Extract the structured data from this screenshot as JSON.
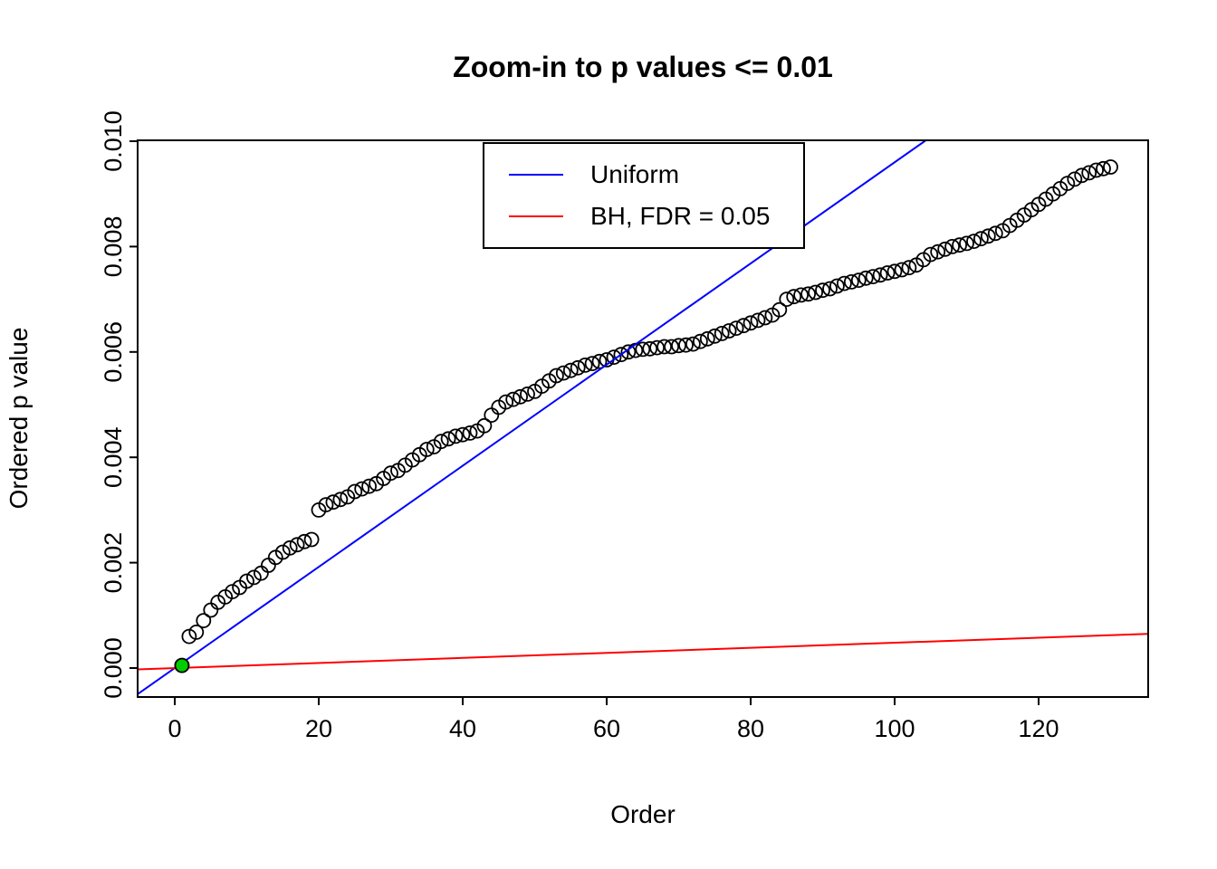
{
  "chart_data": {
    "type": "scatter",
    "title": "Zoom-in to p values <= 0.01",
    "xlabel": "Order",
    "ylabel": "Ordered p value",
    "xlim": [
      -5.2,
      135.2
    ],
    "ylim": [
      -0.00055,
      0.01002
    ],
    "x_ticks": [
      0,
      20,
      40,
      60,
      80,
      100,
      120
    ],
    "y_ticks": [
      0.0,
      0.002,
      0.004,
      0.006,
      0.008,
      0.01
    ],
    "y_tick_labels": [
      "0.000",
      "0.002",
      "0.004",
      "0.006",
      "0.008",
      "0.010"
    ],
    "grid": false,
    "legend": {
      "position": "top-center",
      "items": [
        {
          "label": "Uniform",
          "color": "#0000FF"
        },
        {
          "label": "BH, FDR = 0.05",
          "color": "#FF0000"
        }
      ]
    },
    "series": [
      {
        "name": "ordered-p-values",
        "marker": "open-circle",
        "color": "#000000",
        "x": [
          1,
          2,
          3,
          4,
          5,
          6,
          7,
          8,
          9,
          10,
          11,
          12,
          13,
          14,
          15,
          16,
          17,
          18,
          19,
          20,
          21,
          22,
          23,
          24,
          25,
          26,
          27,
          28,
          29,
          30,
          31,
          32,
          33,
          34,
          35,
          36,
          37,
          38,
          39,
          40,
          41,
          42,
          43,
          44,
          45,
          46,
          47,
          48,
          49,
          50,
          51,
          52,
          53,
          54,
          55,
          56,
          57,
          58,
          59,
          60,
          61,
          62,
          63,
          64,
          65,
          66,
          67,
          68,
          69,
          70,
          71,
          72,
          73,
          74,
          75,
          76,
          77,
          78,
          79,
          80,
          81,
          82,
          83,
          84,
          85,
          86,
          87,
          88,
          89,
          90,
          91,
          92,
          93,
          94,
          95,
          96,
          97,
          98,
          99,
          100,
          101,
          102,
          103,
          104,
          105,
          106,
          107,
          108,
          109,
          110,
          111,
          112,
          113,
          114,
          115,
          116,
          117,
          118,
          119,
          120,
          121,
          122,
          123,
          124,
          125,
          126,
          127,
          128,
          129,
          130
        ],
        "y": [
          5e-05,
          0.0006,
          0.00068,
          0.0009,
          0.0011,
          0.00125,
          0.00135,
          0.00145,
          0.00153,
          0.00165,
          0.00172,
          0.0018,
          0.00195,
          0.0021,
          0.0022,
          0.00228,
          0.00234,
          0.0024,
          0.00244,
          0.003,
          0.0031,
          0.00315,
          0.0032,
          0.00325,
          0.00335,
          0.0034,
          0.00345,
          0.0035,
          0.0036,
          0.0037,
          0.00375,
          0.00385,
          0.00395,
          0.00405,
          0.00415,
          0.0042,
          0.0043,
          0.00435,
          0.0044,
          0.00443,
          0.00446,
          0.0045,
          0.0046,
          0.0048,
          0.00495,
          0.00505,
          0.0051,
          0.00515,
          0.0052,
          0.00525,
          0.00535,
          0.00545,
          0.00555,
          0.0056,
          0.00565,
          0.0057,
          0.00575,
          0.00578,
          0.00582,
          0.00585,
          0.0059,
          0.00595,
          0.006,
          0.00603,
          0.00605,
          0.00606,
          0.00608,
          0.0061,
          0.0061,
          0.00612,
          0.00613,
          0.00615,
          0.0062,
          0.00625,
          0.0063,
          0.00635,
          0.0064,
          0.00645,
          0.0065,
          0.00655,
          0.0066,
          0.00665,
          0.0067,
          0.0068,
          0.007,
          0.00705,
          0.00708,
          0.0071,
          0.00713,
          0.00717,
          0.0072,
          0.00725,
          0.0073,
          0.00733,
          0.00736,
          0.0074,
          0.00743,
          0.00746,
          0.0075,
          0.00753,
          0.00756,
          0.0076,
          0.00765,
          0.00775,
          0.00785,
          0.0079,
          0.00795,
          0.008,
          0.00803,
          0.00806,
          0.0081,
          0.00815,
          0.0082,
          0.00825,
          0.0083,
          0.0084,
          0.0085,
          0.0086,
          0.0087,
          0.0088,
          0.0089,
          0.009,
          0.0091,
          0.0092,
          0.00928,
          0.00935,
          0.0094,
          0.00945,
          0.00948,
          0.00951
        ]
      }
    ],
    "highlight_point": {
      "x": 1,
      "y": 5e-05,
      "color": "#00CD00"
    },
    "lines": [
      {
        "name": "Uniform",
        "color": "#0000FF",
        "slope": 9.6e-05,
        "intercept": 0
      },
      {
        "name": "BH, FDR = 0.05",
        "color": "#FF0000",
        "slope": 4.8e-06,
        "intercept": 0
      }
    ]
  }
}
